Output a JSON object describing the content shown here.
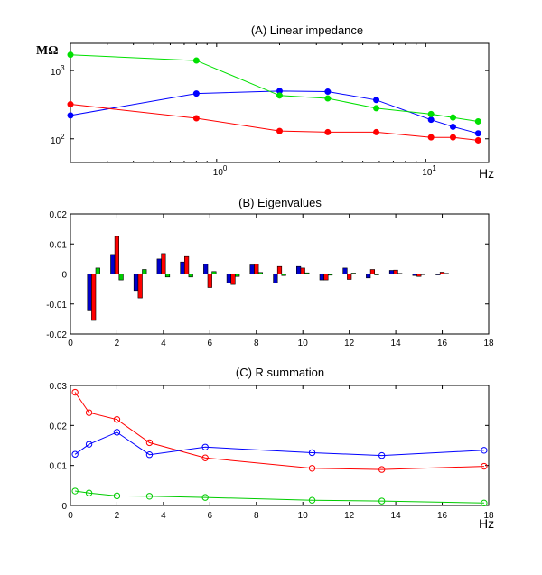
{
  "chart_data": [
    {
      "type": "line",
      "title": "(A) Linear impedance",
      "ylabel": "MΩ",
      "xlabel": "Hz",
      "x_scale": "log",
      "y_scale": "log",
      "xlim": [
        0.2,
        20
      ],
      "ylim": [
        45,
        2500
      ],
      "x_ticks": [
        {
          "value": 1,
          "base": "10",
          "exp": "0"
        },
        {
          "value": 10,
          "base": "10",
          "exp": "1"
        }
      ],
      "y_ticks": [
        {
          "value": 100,
          "base": "10",
          "exp": "2"
        },
        {
          "value": 1000,
          "base": "10",
          "exp": "3"
        }
      ],
      "series": [
        {
          "name": "blue",
          "color": "#0000ff",
          "marker": "filled",
          "x": [
            0.2,
            0.8,
            2,
            3.4,
            5.8,
            10.6,
            13.5,
            17.8
          ],
          "y": [
            220,
            460,
            500,
            490,
            370,
            190,
            150,
            120
          ]
        },
        {
          "name": "green",
          "color": "#00e000",
          "marker": "filled",
          "x": [
            0.2,
            0.8,
            2,
            3.4,
            5.8,
            10.6,
            13.5,
            17.8
          ],
          "y": [
            1700,
            1400,
            430,
            390,
            280,
            230,
            205,
            180
          ]
        },
        {
          "name": "red",
          "color": "#ff0000",
          "marker": "filled",
          "x": [
            0.2,
            0.8,
            2,
            3.4,
            5.8,
            10.6,
            13.5,
            17.8
          ],
          "y": [
            320,
            200,
            130,
            125,
            125,
            105,
            105,
            95
          ]
        }
      ]
    },
    {
      "type": "bar",
      "title": "(B) Eigenvalues",
      "xlim": [
        0,
        18
      ],
      "ylim": [
        -0.02,
        0.02
      ],
      "x_ticks": [
        "0",
        "2",
        "4",
        "6",
        "8",
        "10",
        "12",
        "14",
        "16",
        "18"
      ],
      "y_ticks": [
        "-0.02",
        "-0.01",
        "0",
        "0.01",
        "0.02"
      ],
      "categories": [
        1,
        2,
        3,
        4,
        5,
        6,
        7,
        8,
        9,
        10,
        11,
        12,
        13,
        14,
        15,
        16
      ],
      "series": [
        {
          "name": "blue",
          "color": "#0000cc",
          "values": [
            -0.012,
            0.0065,
            -0.0055,
            0.005,
            0.004,
            0.0033,
            -0.003,
            0.003,
            -0.003,
            0.0025,
            -0.002,
            0.002,
            -0.0013,
            0.0012,
            -0.0005,
            -0.0003
          ]
        },
        {
          "name": "red",
          "color": "#ff0000",
          "values": [
            -0.0155,
            0.0125,
            -0.008,
            0.0068,
            0.0058,
            -0.0045,
            -0.0035,
            0.0033,
            0.0025,
            0.002,
            -0.002,
            -0.0018,
            0.0015,
            0.0013,
            -0.0008,
            0.0006
          ]
        },
        {
          "name": "green",
          "color": "#00cc00",
          "values": [
            0.002,
            -0.002,
            0.0015,
            -0.001,
            -0.001,
            0.0008,
            -0.0008,
            0.0005,
            -0.0005,
            0.0004,
            -0.0004,
            0.0003,
            -0.0003,
            0.0002,
            -0.0002,
            0.0002
          ]
        }
      ]
    },
    {
      "type": "line",
      "title": "(C) R summation",
      "xlabel": "Hz",
      "xlim": [
        0,
        18
      ],
      "ylim": [
        0,
        0.03
      ],
      "x_ticks": [
        "0",
        "2",
        "4",
        "6",
        "8",
        "10",
        "12",
        "14",
        "16",
        "18"
      ],
      "y_ticks": [
        "0",
        "0.01",
        "0.02",
        "0.03"
      ],
      "series": [
        {
          "name": "red",
          "color": "#ff0000",
          "marker": "open",
          "x": [
            0.2,
            0.8,
            2,
            3.4,
            5.8,
            10.4,
            13.4,
            17.8
          ],
          "y": [
            0.0283,
            0.0232,
            0.0215,
            0.0157,
            0.0119,
            0.0093,
            0.009,
            0.0098
          ]
        },
        {
          "name": "blue",
          "color": "#0000ff",
          "marker": "open",
          "x": [
            0.2,
            0.8,
            2,
            3.4,
            5.8,
            10.4,
            13.4,
            17.8
          ],
          "y": [
            0.0128,
            0.0153,
            0.0183,
            0.0127,
            0.0146,
            0.0132,
            0.0125,
            0.0138
          ]
        },
        {
          "name": "green",
          "color": "#00cc00",
          "marker": "open",
          "x": [
            0.2,
            0.8,
            2,
            3.4,
            5.8,
            10.4,
            13.4,
            17.8
          ],
          "y": [
            0.0036,
            0.0031,
            0.0024,
            0.0023,
            0.002,
            0.0013,
            0.0011,
            0.0006
          ]
        }
      ]
    }
  ]
}
